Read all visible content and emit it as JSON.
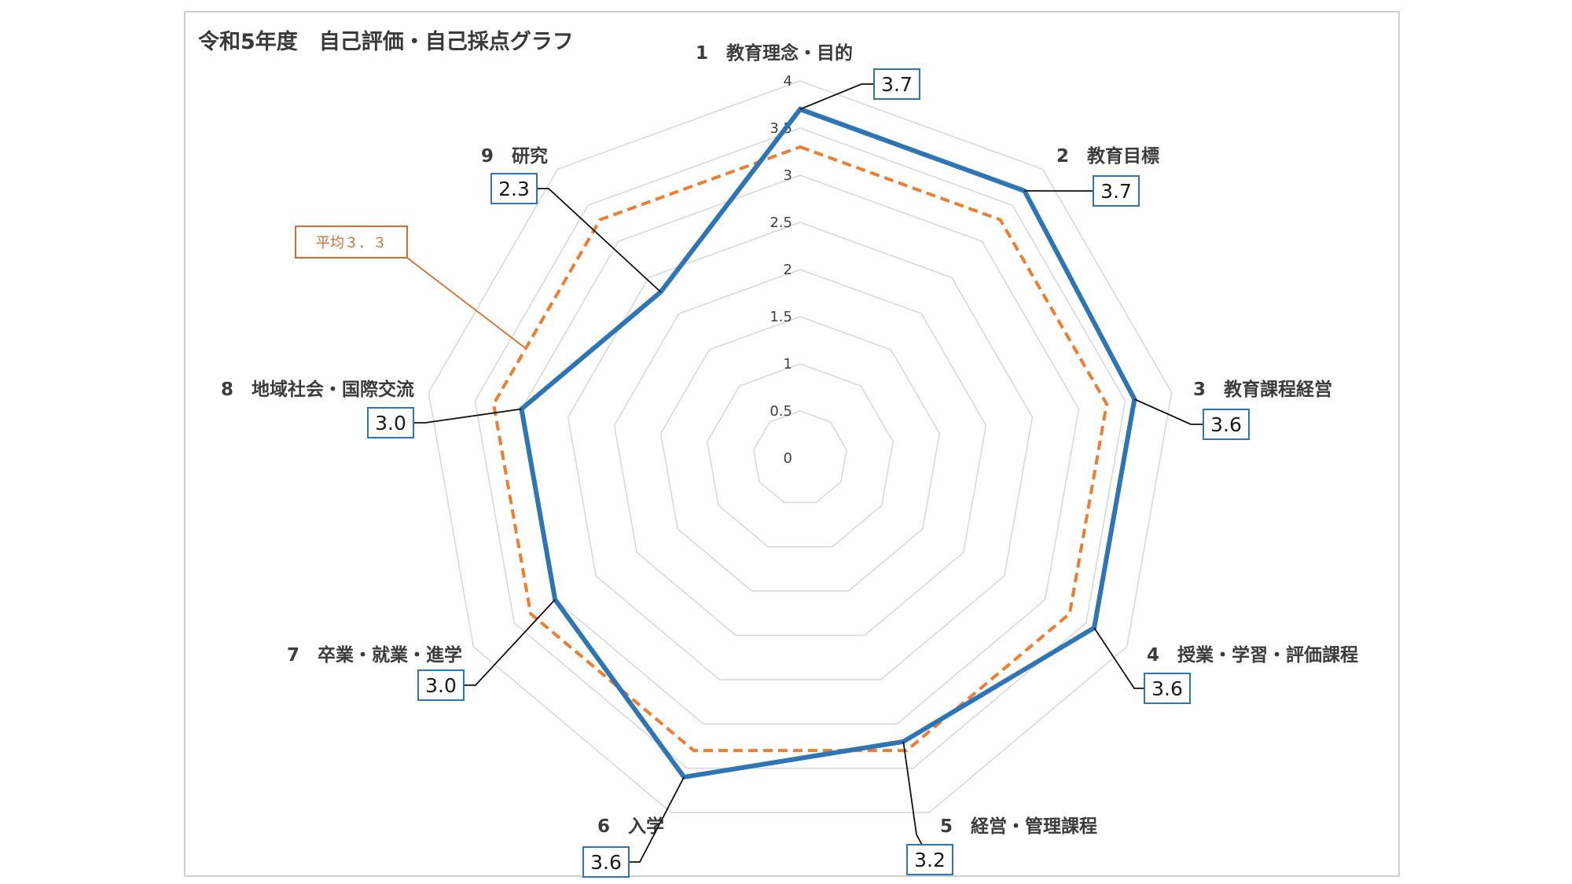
{
  "chart_data": {
    "type": "radar",
    "title": "令和5年度　自己評価・自己採点グラフ",
    "categories": [
      "1　教育理念・目的",
      "2　教育目標",
      "3　教育課程経営",
      "4　授業・学習・評価課程",
      "5　経営・管理課程",
      "6　入学",
      "7　卒業・就業・進学",
      "8　地域社会・国際交流",
      "9　研究"
    ],
    "series": [
      {
        "values": [
          3.7,
          3.7,
          3.6,
          3.6,
          3.2,
          3.6,
          3.0,
          3.0,
          2.3
        ],
        "color": "#2e75b6"
      },
      {
        "values": [
          3.3,
          3.3,
          3.3,
          3.3,
          3.3,
          3.3,
          3.3,
          3.3,
          3.3
        ],
        "color": "#ed7d31",
        "dashed": true
      }
    ],
    "value_labels": [
      "3.7",
      "3.7",
      "3.6",
      "3.6",
      "3.2",
      "3.6",
      "3.0",
      "3.0",
      "2.3"
    ],
    "average_label": "平均３．３",
    "rlim": [
      0,
      4
    ],
    "ticks": [
      "0",
      "0.5",
      "1",
      "1.5",
      "2",
      "2.5",
      "3",
      "3.5",
      "4"
    ],
    "grid": true,
    "legend": "none"
  }
}
